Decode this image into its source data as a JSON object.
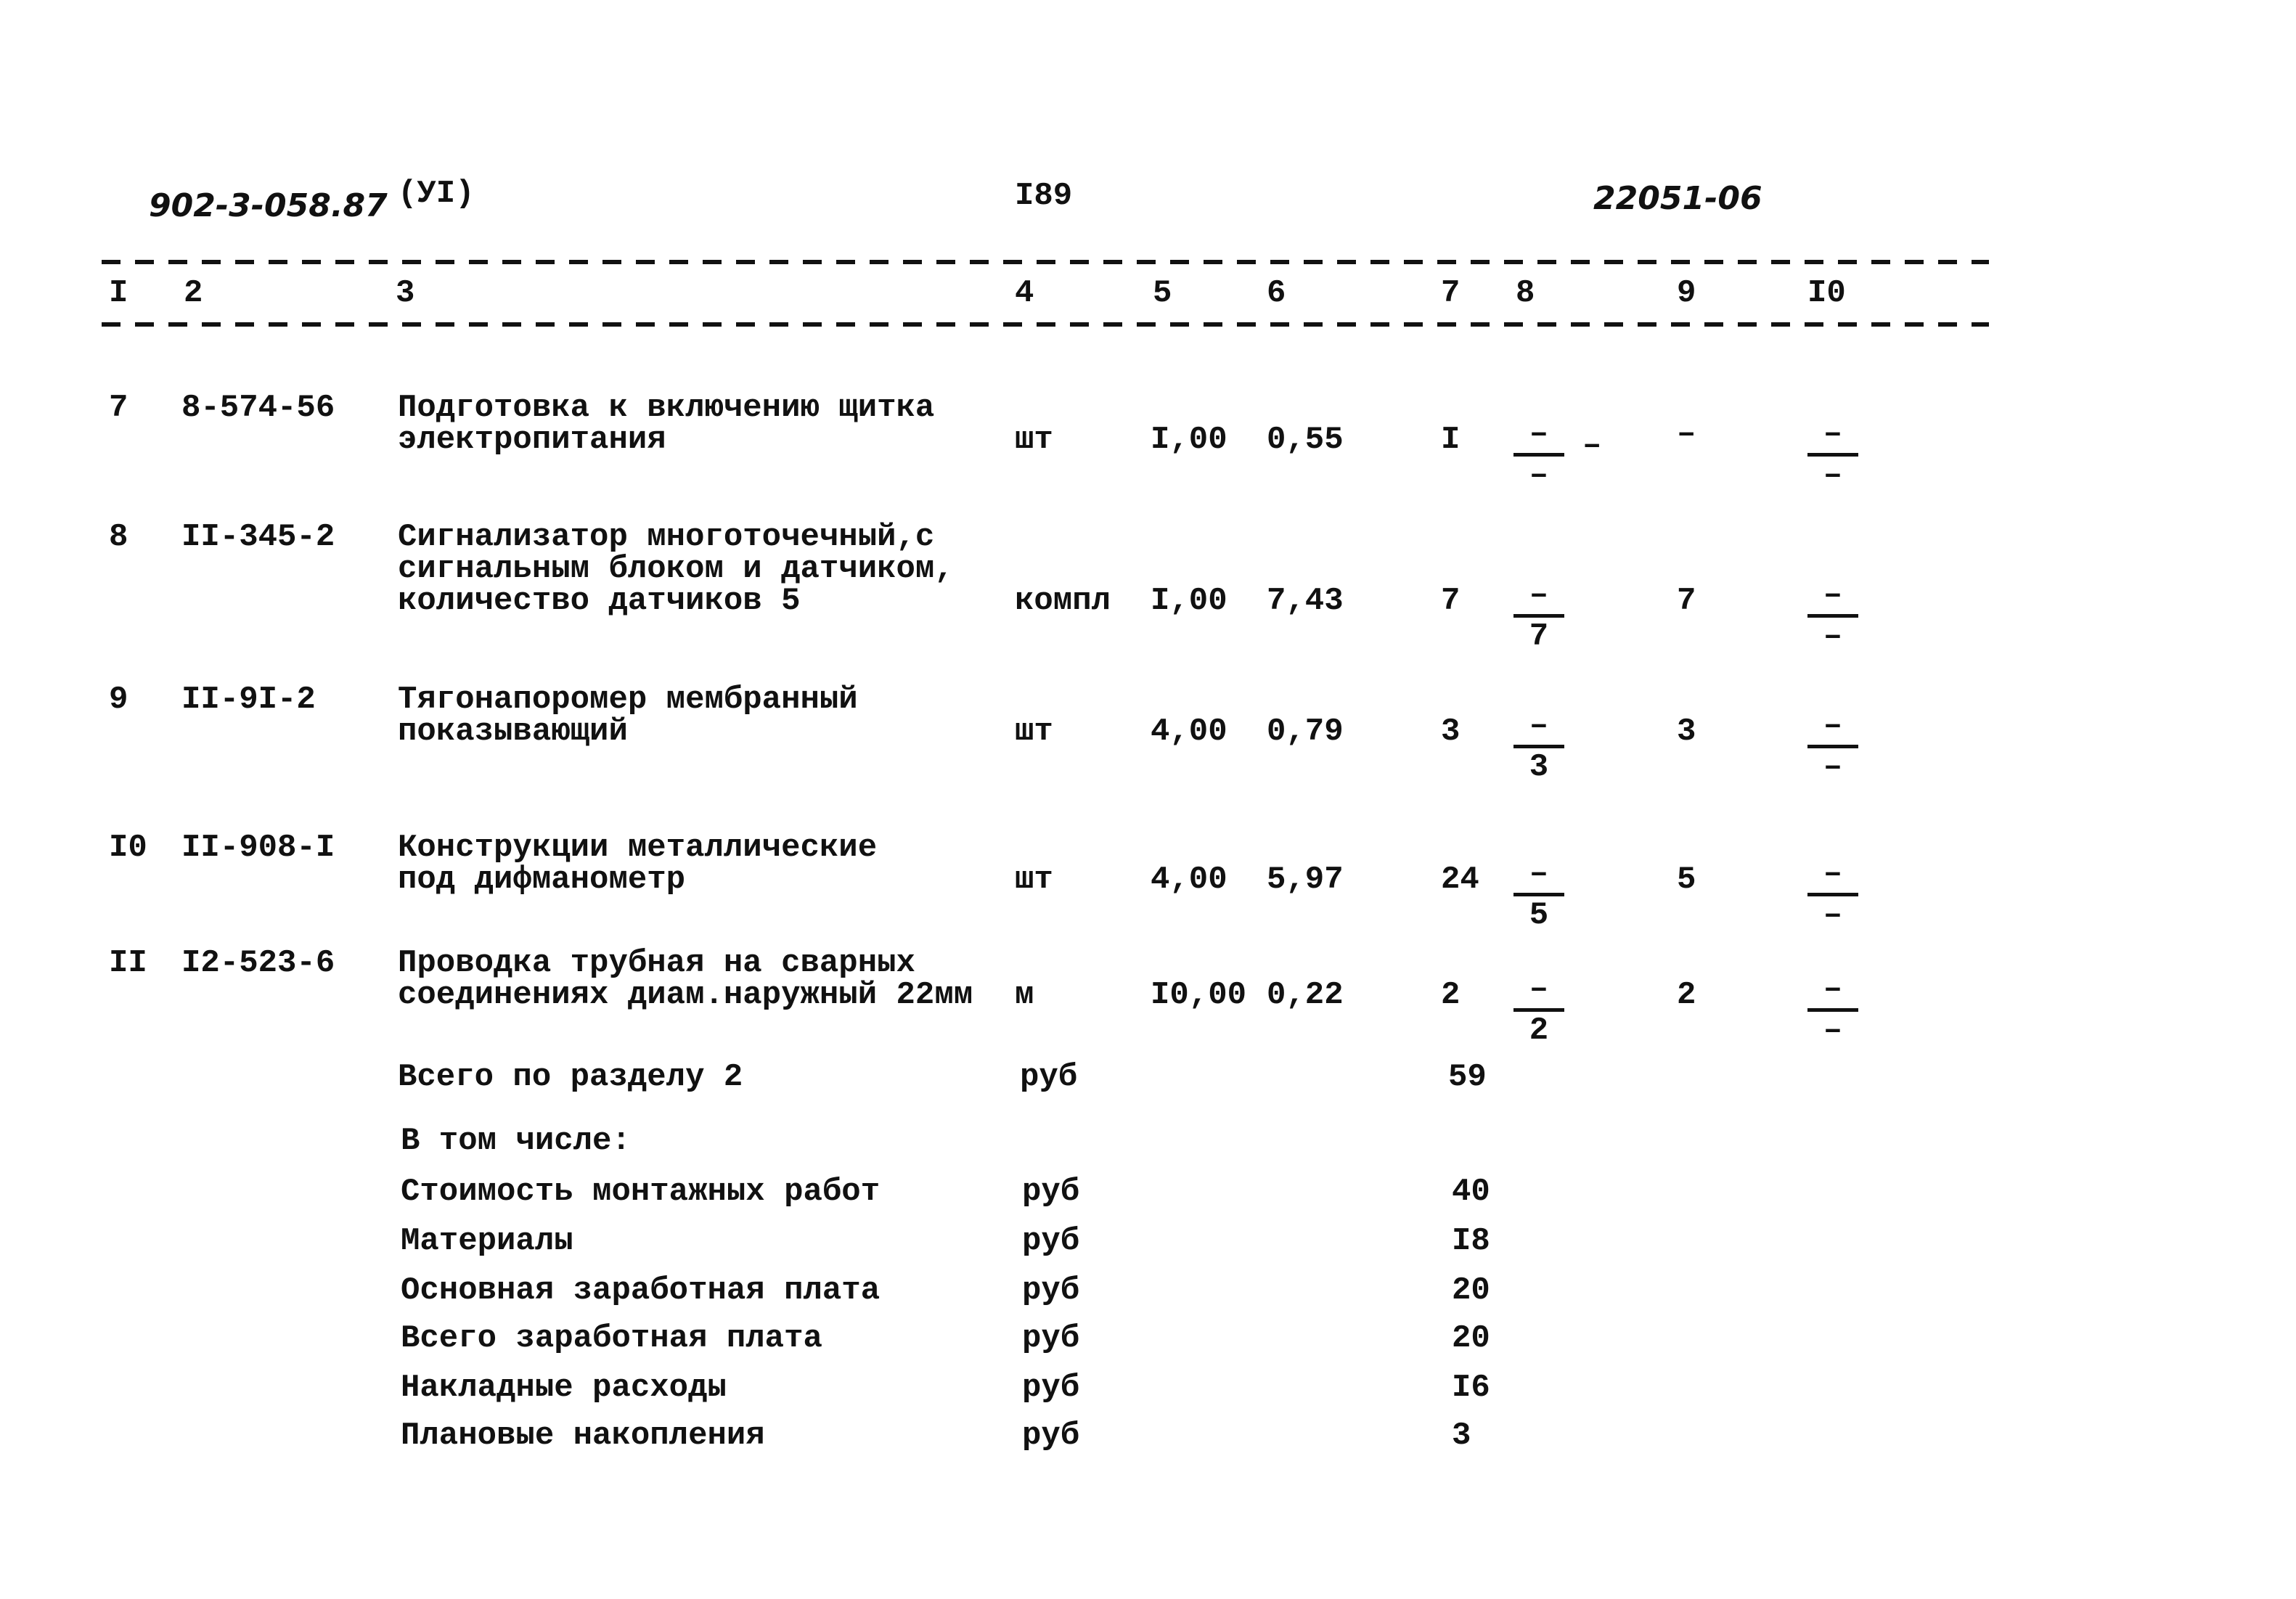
{
  "header": {
    "doc_code": "902-3-058.87",
    "section": "(УI)",
    "page": "I89",
    "inv_number": "22051-06"
  },
  "columns": [
    "I",
    "2",
    "3",
    "4",
    "5",
    "6",
    "7",
    "8",
    "9",
    "I0"
  ],
  "rows": [
    {
      "n": "7",
      "code": "8-574-56",
      "name": [
        "Подготовка к включению щитка",
        "электропитания"
      ],
      "unit": "шт",
      "c5": "I,00",
      "c6": "0,55",
      "c7": "I",
      "c8_top": "–",
      "c8_bottom": "–",
      "c8_extra": "–",
      "c9": "–",
      "c10_top": "–",
      "c10_bottom": "–"
    },
    {
      "n": "8",
      "code": "II-345-2",
      "name": [
        "Сигнализатор многоточечный,с",
        "сигнальным блоком и датчиком,",
        "количество датчиков 5"
      ],
      "unit": "компл",
      "c5": "I,00",
      "c6": "7,43",
      "c7": "7",
      "c8_top": "–",
      "c8_bottom": "7",
      "c9": "7",
      "c10_top": "–",
      "c10_bottom": "–"
    },
    {
      "n": "9",
      "code": "II-9I-2",
      "name": [
        "Тягонапоромер мембранный",
        "показывающий"
      ],
      "unit": "шт",
      "c5": "4,00",
      "c6": "0,79",
      "c7": "3",
      "c8_top": "–",
      "c8_bottom": "3",
      "c9": "3",
      "c10_top": "–",
      "c10_bottom": "–"
    },
    {
      "n": "I0",
      "code": "II-908-I",
      "name": [
        "Конструкции металлические",
        "под дифманометр"
      ],
      "unit": "шт",
      "c5": "4,00",
      "c6": "5,97",
      "c7": "24",
      "c8_top": "–",
      "c8_bottom": "5",
      "c9": "5",
      "c10_top": "–",
      "c10_bottom": "–"
    },
    {
      "n": "II",
      "code": "I2-523-6",
      "name": [
        "Проводка трубная на сварных",
        "соединениях диам.наружный 22мм"
      ],
      "unit": "м",
      "c5": "I0,00",
      "c6": "0,22",
      "c7": "2",
      "c8_top": "–",
      "c8_bottom": "2",
      "c9": "2",
      "c10_top": "–",
      "c10_bottom": "–"
    }
  ],
  "totals": {
    "total_label": "Всего по разделу 2",
    "total_unit": "руб",
    "total_value": "59",
    "including_label": "В том числе:",
    "items": [
      {
        "label": "Стоимость монтажных работ",
        "unit": "руб",
        "value": "40"
      },
      {
        "label": "Материалы",
        "unit": "руб",
        "value": "I8"
      },
      {
        "label": "Основная заработная плата",
        "unit": "руб",
        "value": "20"
      },
      {
        "label": "Всего заработная плата",
        "unit": "руб",
        "value": "20"
      },
      {
        "label": "Накладные расходы",
        "unit": "руб",
        "value": "I6"
      },
      {
        "label": "Плановые накопления",
        "unit": "руб",
        "value": "3"
      }
    ]
  }
}
